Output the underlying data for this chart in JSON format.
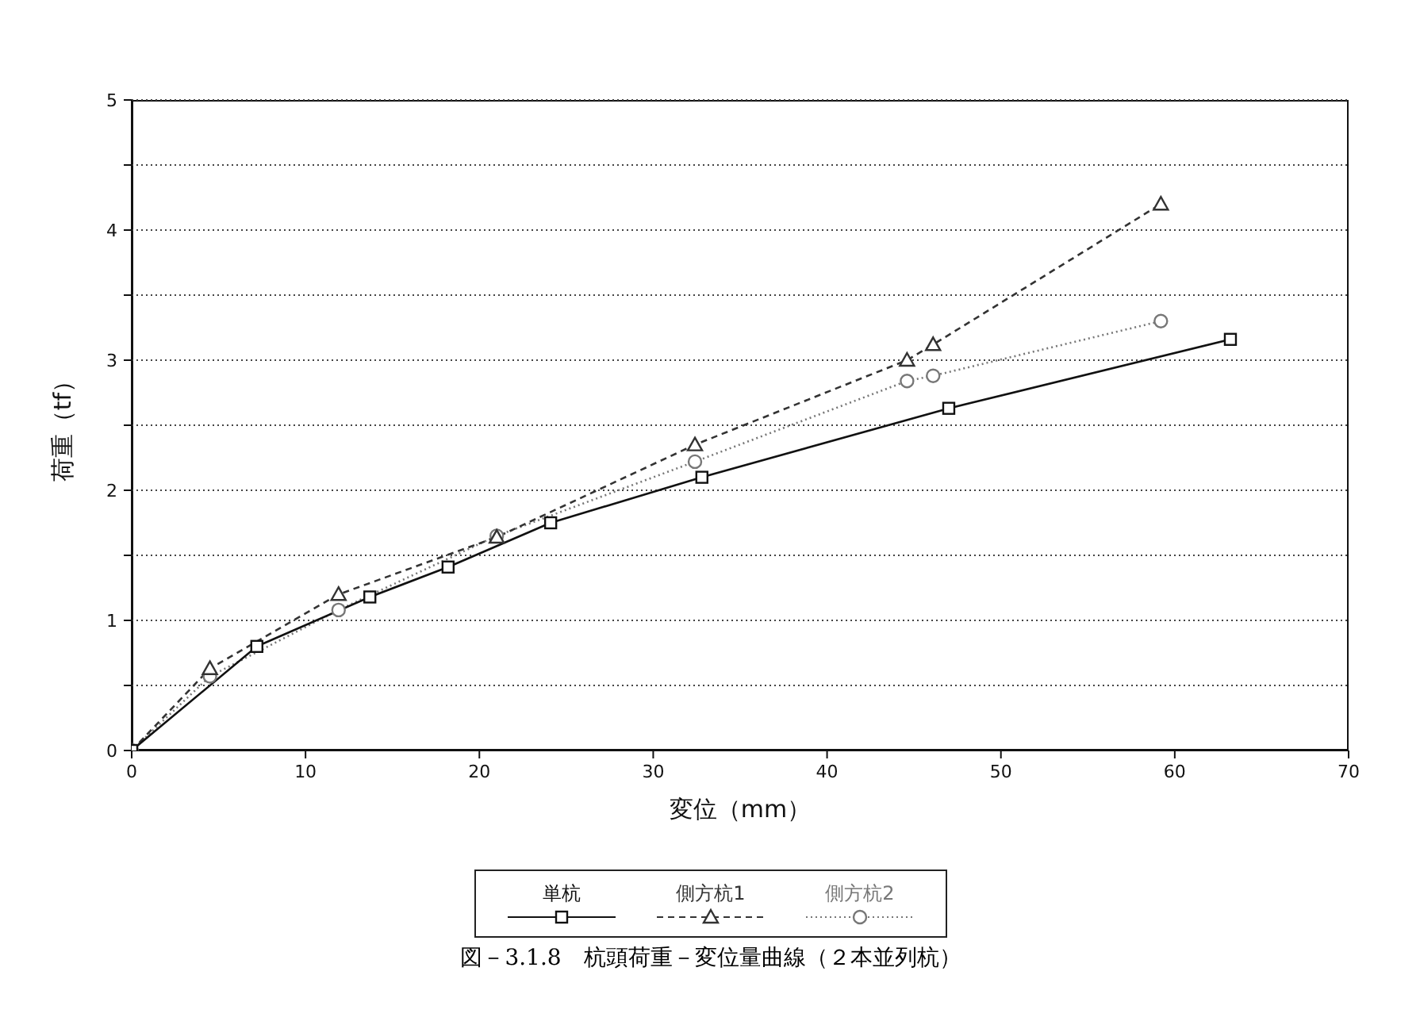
{
  "chart_data": {
    "type": "line",
    "title": "図－3.1.8　杭頭荷重－変位量曲線（２本並列杭）",
    "xlabel": "変位（mm）",
    "ylabel": "荷重（tf）",
    "xlim": [
      0,
      70
    ],
    "xticks": [
      0,
      10,
      20,
      30,
      40,
      50,
      60,
      70
    ],
    "ylim": [
      0,
      5
    ],
    "yticks": [
      0,
      {
        "value": 0.5,
        "label": null
      },
      1,
      {
        "value": 1.5,
        "label": null
      },
      2,
      {
        "value": 2.5,
        "label": null
      },
      3,
      {
        "value": 3.5,
        "label": null
      },
      4,
      {
        "value": 4.5,
        "label": null
      },
      5
    ],
    "grid": "y",
    "legend": "bottom",
    "series": [
      {
        "name": "単杭",
        "color": "#111111",
        "marker": "square",
        "line_style": "solid",
        "x": [
          0,
          7.2,
          13.7,
          18.2,
          24.1,
          32.8,
          47.0,
          63.2
        ],
        "values": [
          0,
          0.8,
          1.18,
          1.41,
          1.75,
          2.1,
          2.63,
          3.16
        ]
      },
      {
        "name": "側方杭1",
        "color": "#333333",
        "marker": "triangle",
        "line_style": "dashed",
        "x": [
          0,
          4.5,
          11.9,
          21.0,
          32.4,
          44.6,
          46.1,
          59.2
        ],
        "values": [
          0,
          0.63,
          1.2,
          1.64,
          2.35,
          3.0,
          3.12,
          4.2
        ]
      },
      {
        "name": "側方杭2",
        "color": "#777777",
        "marker": "circle",
        "line_style": "dotted",
        "x": [
          0,
          4.5,
          11.9,
          21.0,
          32.4,
          44.6,
          46.1,
          59.2
        ],
        "values": [
          0,
          0.57,
          1.08,
          1.65,
          2.22,
          2.84,
          2.88,
          3.3
        ]
      }
    ]
  }
}
